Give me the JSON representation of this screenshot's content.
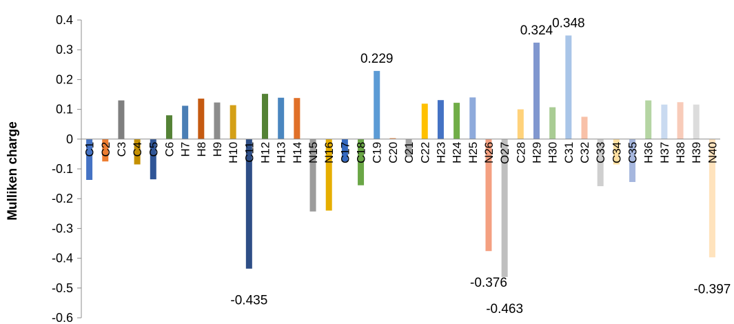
{
  "chart_data": {
    "type": "bar",
    "title": "",
    "xlabel": "",
    "ylabel": "Mulliken charge",
    "ylim": [
      -0.6,
      0.4
    ],
    "yticks": [
      0.4,
      0.3,
      0.2,
      0.1,
      0,
      -0.1,
      -0.2,
      -0.3,
      -0.4,
      -0.5,
      -0.6
    ],
    "ytick_labels": [
      "0.4",
      "0.3",
      "0.2",
      "0.1",
      "0",
      "-0.1",
      "-0.2",
      "-0.3",
      "-0.4",
      "-0.5",
      "-0.6"
    ],
    "grid": false,
    "legend": "none",
    "categories": [
      "C1",
      "C2",
      "C3",
      "C4",
      "C5",
      "C6",
      "H7",
      "H8",
      "H9",
      "H10",
      "C11",
      "H12",
      "H13",
      "H14",
      "N15",
      "N16",
      "C17",
      "C18",
      "C19",
      "C20",
      "C21",
      "C22",
      "H23",
      "H24",
      "H25",
      "N26",
      "O27",
      "C28",
      "H29",
      "H30",
      "C31",
      "C32",
      "C33",
      "C34",
      "C35",
      "H36",
      "H37",
      "H38",
      "H39",
      "N40"
    ],
    "values": [
      -0.137,
      -0.075,
      0.13,
      -0.085,
      -0.135,
      0.08,
      0.112,
      0.136,
      0.123,
      0.114,
      -0.435,
      0.152,
      0.139,
      0.138,
      -0.243,
      -0.24,
      -0.075,
      -0.155,
      0.229,
      0.004,
      -0.06,
      0.119,
      0.131,
      0.122,
      0.14,
      -0.376,
      -0.463,
      0.1,
      0.324,
      0.107,
      0.348,
      0.075,
      -0.158,
      -0.085,
      -0.144,
      0.13,
      0.116,
      0.124,
      0.116,
      -0.397
    ],
    "colors": [
      "#4472C4",
      "#ED7D31",
      "#7F7F7F",
      "#C59000",
      "#2F5597",
      "#548235",
      "#4A7EB5",
      "#C55A11",
      "#8C8C8C",
      "#D4A017",
      "#2E4E86",
      "#548235",
      "#4A86C0",
      "#E07028",
      "#9C9C9C",
      "#E6AE00",
      "#3569C0",
      "#6AA646",
      "#5B9BD5",
      "#F4B183",
      "#A5A5A5",
      "#FFC000",
      "#4472C4",
      "#70AD47",
      "#8EAADB",
      "#F4A081",
      "#BFBFBF",
      "#FFD27A",
      "#8097CF",
      "#A9CC94",
      "#A9C5E8",
      "#F8C1A8",
      "#CFCFCF",
      "#FFE0A0",
      "#A6B7DE",
      "#B5D5A3",
      "#C9DAF0",
      "#F8CBB9",
      "#DCDCDC",
      "#FFE3BD"
    ],
    "data_labels": [
      {
        "index": 10,
        "text": "-0.435"
      },
      {
        "index": 18,
        "text": "0.229"
      },
      {
        "index": 25,
        "text": "-0.376"
      },
      {
        "index": 26,
        "text": "-0.463"
      },
      {
        "index": 28,
        "text": "0.324"
      },
      {
        "index": 30,
        "text": "0.348"
      },
      {
        "index": 39,
        "text": "-0.397"
      }
    ]
  }
}
